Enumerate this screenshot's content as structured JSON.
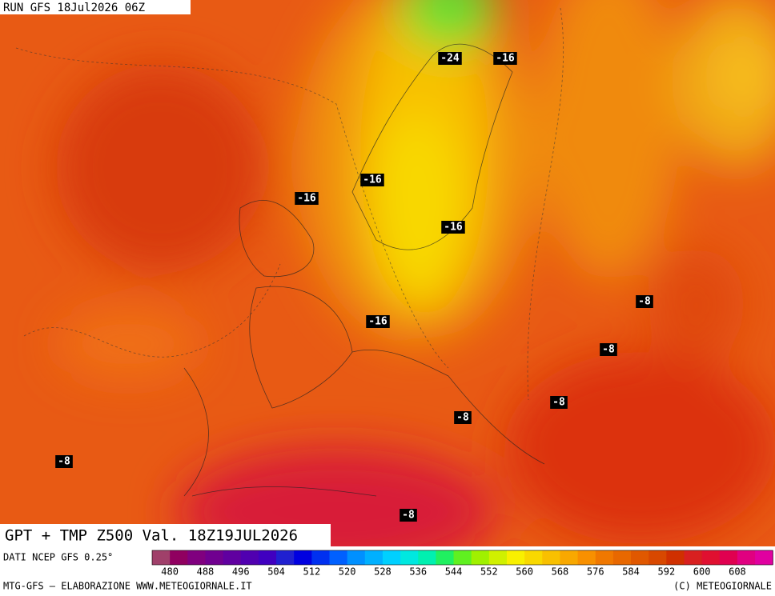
{
  "header": {
    "run": "RUN GFS 18Jul2026 06Z"
  },
  "title": "GPT + TMP Z500 Val. 18Z19JUL2026",
  "contour_labels": [
    "-24",
    "-16",
    "-16",
    "-16",
    "-16",
    "-16",
    "-8",
    "-8",
    "-8",
    "-8",
    "-8",
    "-8"
  ],
  "legend": {
    "source": "DATI NCEP GFS 0.25°",
    "labels": [
      480,
      488,
      496,
      504,
      512,
      520,
      528,
      536,
      544,
      552,
      560,
      568,
      576,
      584,
      592,
      600,
      608
    ]
  },
  "footer": {
    "left": "MTG-GFS – ELABORAZIONE WWW.METEOGIORNALE.IT",
    "right": "(C) METEOGIORNALE"
  }
}
